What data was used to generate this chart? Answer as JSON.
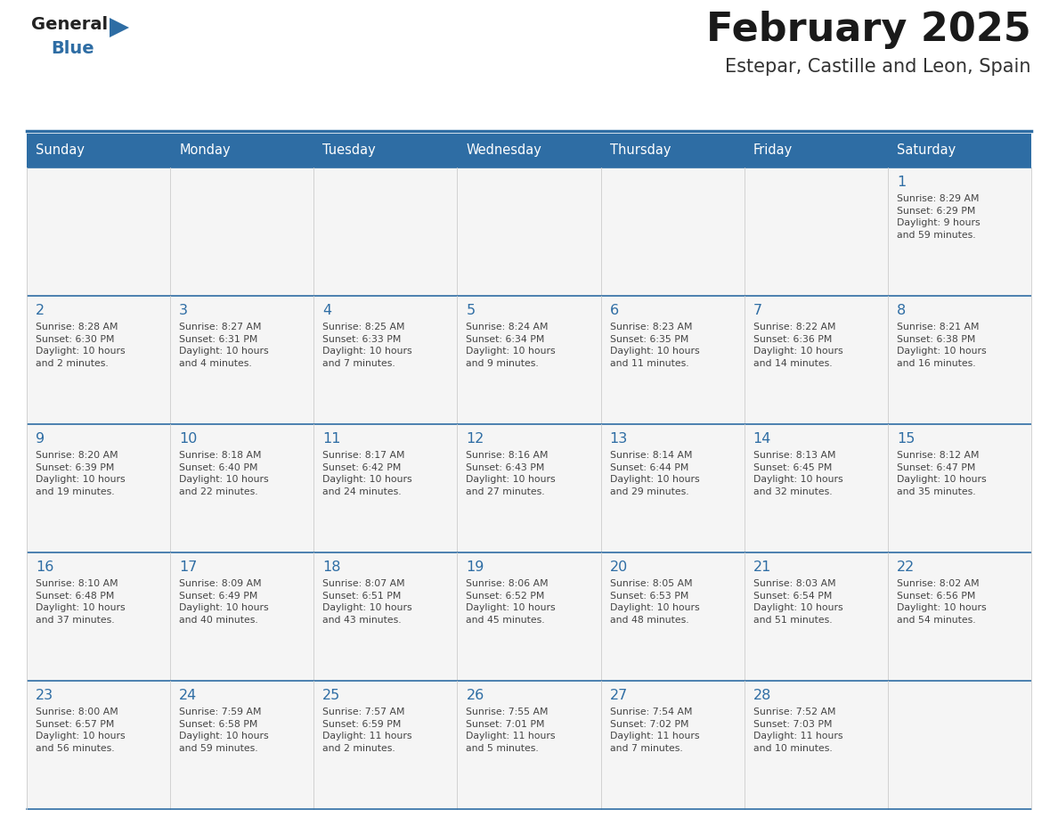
{
  "title": "February 2025",
  "subtitle": "Estepar, Castille and Leon, Spain",
  "header_bg": "#2E6DA4",
  "header_text_color": "#FFFFFF",
  "grid_line_color": "#2E6DA4",
  "day_number_color": "#2E6DA4",
  "cell_text_color": "#444444",
  "logo_text_color": "#222222",
  "logo_blue_color": "#2E6DA4",
  "days_of_week": [
    "Sunday",
    "Monday",
    "Tuesday",
    "Wednesday",
    "Thursday",
    "Friday",
    "Saturday"
  ],
  "calendar_data": [
    [
      {
        "day": "",
        "info": ""
      },
      {
        "day": "",
        "info": ""
      },
      {
        "day": "",
        "info": ""
      },
      {
        "day": "",
        "info": ""
      },
      {
        "day": "",
        "info": ""
      },
      {
        "day": "",
        "info": ""
      },
      {
        "day": "1",
        "info": "Sunrise: 8:29 AM\nSunset: 6:29 PM\nDaylight: 9 hours\nand 59 minutes."
      }
    ],
    [
      {
        "day": "2",
        "info": "Sunrise: 8:28 AM\nSunset: 6:30 PM\nDaylight: 10 hours\nand 2 minutes."
      },
      {
        "day": "3",
        "info": "Sunrise: 8:27 AM\nSunset: 6:31 PM\nDaylight: 10 hours\nand 4 minutes."
      },
      {
        "day": "4",
        "info": "Sunrise: 8:25 AM\nSunset: 6:33 PM\nDaylight: 10 hours\nand 7 minutes."
      },
      {
        "day": "5",
        "info": "Sunrise: 8:24 AM\nSunset: 6:34 PM\nDaylight: 10 hours\nand 9 minutes."
      },
      {
        "day": "6",
        "info": "Sunrise: 8:23 AM\nSunset: 6:35 PM\nDaylight: 10 hours\nand 11 minutes."
      },
      {
        "day": "7",
        "info": "Sunrise: 8:22 AM\nSunset: 6:36 PM\nDaylight: 10 hours\nand 14 minutes."
      },
      {
        "day": "8",
        "info": "Sunrise: 8:21 AM\nSunset: 6:38 PM\nDaylight: 10 hours\nand 16 minutes."
      }
    ],
    [
      {
        "day": "9",
        "info": "Sunrise: 8:20 AM\nSunset: 6:39 PM\nDaylight: 10 hours\nand 19 minutes."
      },
      {
        "day": "10",
        "info": "Sunrise: 8:18 AM\nSunset: 6:40 PM\nDaylight: 10 hours\nand 22 minutes."
      },
      {
        "day": "11",
        "info": "Sunrise: 8:17 AM\nSunset: 6:42 PM\nDaylight: 10 hours\nand 24 minutes."
      },
      {
        "day": "12",
        "info": "Sunrise: 8:16 AM\nSunset: 6:43 PM\nDaylight: 10 hours\nand 27 minutes."
      },
      {
        "day": "13",
        "info": "Sunrise: 8:14 AM\nSunset: 6:44 PM\nDaylight: 10 hours\nand 29 minutes."
      },
      {
        "day": "14",
        "info": "Sunrise: 8:13 AM\nSunset: 6:45 PM\nDaylight: 10 hours\nand 32 minutes."
      },
      {
        "day": "15",
        "info": "Sunrise: 8:12 AM\nSunset: 6:47 PM\nDaylight: 10 hours\nand 35 minutes."
      }
    ],
    [
      {
        "day": "16",
        "info": "Sunrise: 8:10 AM\nSunset: 6:48 PM\nDaylight: 10 hours\nand 37 minutes."
      },
      {
        "day": "17",
        "info": "Sunrise: 8:09 AM\nSunset: 6:49 PM\nDaylight: 10 hours\nand 40 minutes."
      },
      {
        "day": "18",
        "info": "Sunrise: 8:07 AM\nSunset: 6:51 PM\nDaylight: 10 hours\nand 43 minutes."
      },
      {
        "day": "19",
        "info": "Sunrise: 8:06 AM\nSunset: 6:52 PM\nDaylight: 10 hours\nand 45 minutes."
      },
      {
        "day": "20",
        "info": "Sunrise: 8:05 AM\nSunset: 6:53 PM\nDaylight: 10 hours\nand 48 minutes."
      },
      {
        "day": "21",
        "info": "Sunrise: 8:03 AM\nSunset: 6:54 PM\nDaylight: 10 hours\nand 51 minutes."
      },
      {
        "day": "22",
        "info": "Sunrise: 8:02 AM\nSunset: 6:56 PM\nDaylight: 10 hours\nand 54 minutes."
      }
    ],
    [
      {
        "day": "23",
        "info": "Sunrise: 8:00 AM\nSunset: 6:57 PM\nDaylight: 10 hours\nand 56 minutes."
      },
      {
        "day": "24",
        "info": "Sunrise: 7:59 AM\nSunset: 6:58 PM\nDaylight: 10 hours\nand 59 minutes."
      },
      {
        "day": "25",
        "info": "Sunrise: 7:57 AM\nSunset: 6:59 PM\nDaylight: 11 hours\nand 2 minutes."
      },
      {
        "day": "26",
        "info": "Sunrise: 7:55 AM\nSunset: 7:01 PM\nDaylight: 11 hours\nand 5 minutes."
      },
      {
        "day": "27",
        "info": "Sunrise: 7:54 AM\nSunset: 7:02 PM\nDaylight: 11 hours\nand 7 minutes."
      },
      {
        "day": "28",
        "info": "Sunrise: 7:52 AM\nSunset: 7:03 PM\nDaylight: 11 hours\nand 10 minutes."
      },
      {
        "day": "",
        "info": ""
      }
    ]
  ]
}
